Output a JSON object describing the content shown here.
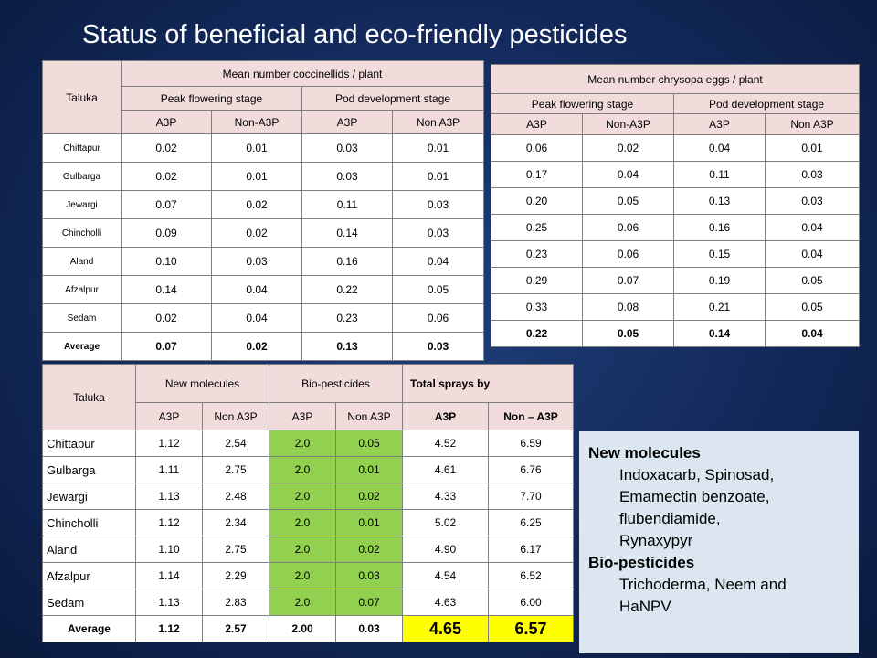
{
  "title": "Status of beneficial and eco-friendly pesticides",
  "coccinellid_table": {
    "taluka_header": "Taluka",
    "group_header": "Mean number coccinellids / plant",
    "stage1": "Peak flowering stage",
    "stage2": "Pod development stage",
    "cols": [
      "A3P",
      "Non-A3P",
      "A3P",
      "Non A3P"
    ],
    "rows": [
      {
        "taluka": "Chittapur",
        "v": [
          "0.02",
          "0.01",
          "0.03",
          "0.01"
        ]
      },
      {
        "taluka": "Gulbarga",
        "v": [
          "0.02",
          "0.01",
          "0.03",
          "0.01"
        ]
      },
      {
        "taluka": "Jewargi",
        "v": [
          "0.07",
          "0.02",
          "0.11",
          "0.03"
        ]
      },
      {
        "taluka": "Chincholli",
        "v": [
          "0.09",
          "0.02",
          "0.14",
          "0.03"
        ]
      },
      {
        "taluka": "Aland",
        "v": [
          "0.10",
          "0.03",
          "0.16",
          "0.04"
        ]
      },
      {
        "taluka": "Afzalpur",
        "v": [
          "0.14",
          "0.04",
          "0.22",
          "0.05"
        ]
      },
      {
        "taluka": "Sedam",
        "v": [
          "0.02",
          "0.04",
          "0.23",
          "0.06"
        ]
      },
      {
        "taluka": "Average",
        "v": [
          "0.07",
          "0.02",
          "0.13",
          "0.03"
        ]
      }
    ]
  },
  "chrysopa_table": {
    "group_header": "Mean number chrysopa eggs / plant",
    "stage1": "Peak flowering stage",
    "stage2": "Pod development stage",
    "cols": [
      "A3P",
      "Non-A3P",
      "A3P",
      "Non A3P"
    ],
    "rows": [
      [
        "0.06",
        "0.02",
        "0.04",
        "0.01"
      ],
      [
        "0.17",
        "0.04",
        "0.11",
        "0.03"
      ],
      [
        "0.20",
        "0.05",
        "0.13",
        "0.03"
      ],
      [
        "0.25",
        "0.06",
        "0.16",
        "0.04"
      ],
      [
        "0.23",
        "0.06",
        "0.15",
        "0.04"
      ],
      [
        "0.29",
        "0.07",
        "0.19",
        "0.05"
      ],
      [
        "0.33",
        "0.08",
        "0.21",
        "0.05"
      ],
      [
        "0.22",
        "0.05",
        "0.14",
        "0.04"
      ]
    ]
  },
  "sprays_table": {
    "taluka_header": "Taluka",
    "new_molecules": "New molecules",
    "bio_pesticides": "Bio-pesticides",
    "total_sprays": "Total sprays by",
    "cols": [
      "A3P",
      "Non A3P",
      "A3P",
      "Non A3P",
      "A3P",
      "Non – A3P"
    ],
    "rows": [
      {
        "taluka": "Chittapur",
        "v": [
          "1.12",
          "2.54",
          "2.0",
          "0.05",
          "4.52",
          "6.59"
        ]
      },
      {
        "taluka": "Gulbarga",
        "v": [
          "1.11",
          "2.75",
          "2.0",
          "0.01",
          "4.61",
          "6.76"
        ]
      },
      {
        "taluka": "Jewargi",
        "v": [
          "1.13",
          "2.48",
          "2.0",
          "0.02",
          "4.33",
          "7.70"
        ]
      },
      {
        "taluka": "Chincholli",
        "v": [
          "1.12",
          "2.34",
          "2.0",
          "0.01",
          "5.02",
          "6.25"
        ]
      },
      {
        "taluka": "Aland",
        "v": [
          "1.10",
          "2.75",
          "2.0",
          "0.02",
          "4.90",
          "6.17"
        ]
      },
      {
        "taluka": "Afzalpur",
        "v": [
          "1.14",
          "2.29",
          "2.0",
          "0.03",
          "4.54",
          "6.52"
        ]
      },
      {
        "taluka": "Sedam",
        "v": [
          "1.13",
          "2.83",
          "2.0",
          "0.07",
          "4.63",
          "6.00"
        ]
      },
      {
        "taluka": "Average",
        "v": [
          "1.12",
          "2.57",
          "2.00",
          "0.03",
          "4.65",
          "6.57"
        ]
      }
    ]
  },
  "legend": {
    "new_molecules_heading": "New molecules",
    "new_molecules_lines": [
      "Indoxacarb, Spinosad,",
      "Emamectin benzoate,",
      "flubendiamide,",
      "Rynaxypyr"
    ],
    "bio_heading": "Bio-pesticides",
    "bio_lines": [
      "Trichoderma, Neem and",
      "HaNPV"
    ]
  },
  "colors": {
    "header_pink": "#f2dcdb",
    "bio_green": "#92d050",
    "avg_yellow": "#ffff00",
    "legend_blue": "#dce6f1"
  }
}
